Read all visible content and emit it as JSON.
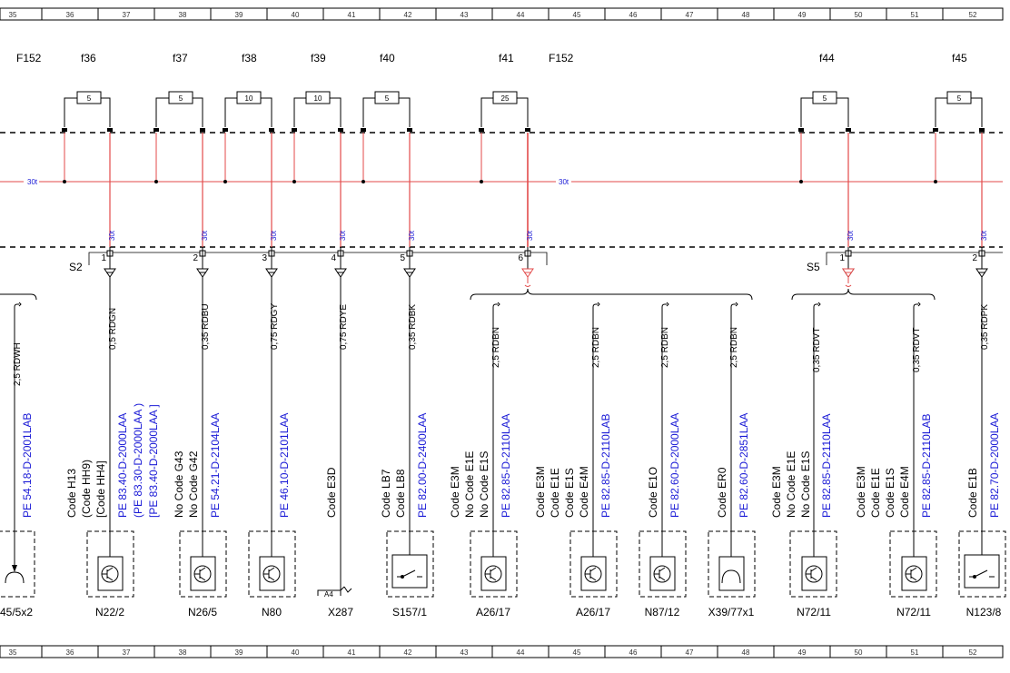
{
  "ruler": [
    "35",
    "36",
    "37",
    "38",
    "39",
    "40",
    "41",
    "42",
    "43",
    "44",
    "45",
    "46",
    "47",
    "48",
    "49",
    "50",
    "51",
    "52"
  ],
  "fuse_blocks": [
    {
      "id": "f152_a",
      "label": "F152"
    },
    {
      "id": "f152_b",
      "label": "F152"
    }
  ],
  "fuses": [
    {
      "name": "f36",
      "rating": "5"
    },
    {
      "name": "f37",
      "rating": "5"
    },
    {
      "name": "f38",
      "rating": "10"
    },
    {
      "name": "f39",
      "rating": "10"
    },
    {
      "name": "f40",
      "rating": "5"
    },
    {
      "name": "f41",
      "rating": "25"
    },
    {
      "name": "f44",
      "rating": "5"
    },
    {
      "name": "f45",
      "rating": "5"
    }
  ],
  "bus": {
    "left": "30t",
    "right": "30t",
    "drop_label": "30t"
  },
  "connectors": [
    {
      "name": "S2",
      "pins": [
        "1",
        "2",
        "3",
        "4",
        "5",
        "6"
      ]
    },
    {
      "name": "S5",
      "pins": [
        "1",
        "2"
      ]
    }
  ],
  "wires": [
    {
      "id": "w0",
      "wire": "2,5 RDWH",
      "codes": [],
      "pe": "PE 54.18-D-2001LAB",
      "component": "45/5x2"
    },
    {
      "id": "w1",
      "wire": "0,5 RDGN",
      "codes": [
        "Code H13",
        "(Code HH9)",
        "[Code HH4]"
      ],
      "pe": "PE 83.40-D-2000LAA",
      "pe2": "(PE 83.30-D-2000LAA    )",
      "pe3": "[PE 83.40-D-2000LAA    ]",
      "component": "N22/2"
    },
    {
      "id": "w2",
      "wire": "0,35 RDBU",
      "codes": [
        "No Code G43",
        "No Code G42"
      ],
      "pe": "PE 54.21-D-2104LAA",
      "component": "N26/5"
    },
    {
      "id": "w3",
      "wire": "0,75 RDGY",
      "codes": [],
      "pe": "PE 46.10-D-2101LAA",
      "component": "N80"
    },
    {
      "id": "w4",
      "wire": "0,75 RDYE",
      "codes": [
        "Code E3D"
      ],
      "pe": "",
      "component": "X287",
      "pin": "A4"
    },
    {
      "id": "w5",
      "wire": "0,35 RDBK",
      "codes": [
        "Code LB7",
        "Code LB8"
      ],
      "pe": "PE 82.00-D-2400LAA",
      "component": "S157/1"
    },
    {
      "id": "w6",
      "wire": "2,5 RDBN",
      "codes": [
        "Code E3M",
        "No Code E1E",
        "No Code E1S"
      ],
      "pe": "PE 82.85-D-2110LAA",
      "component": "A26/17"
    },
    {
      "id": "w7",
      "wire": "2,5 RDBN",
      "codes": [
        "Code E3M",
        "Code E1E",
        "Code E1S",
        "Code E4M"
      ],
      "pe": "PE 82.85-D-2110LAB",
      "component": "A26/17"
    },
    {
      "id": "w8",
      "wire": "2,5 RDBN",
      "codes": [
        "Code E1O"
      ],
      "pe": "PE 82.60-D-2000LAA",
      "component": "N87/12"
    },
    {
      "id": "w9",
      "wire": "2,5 RDBN",
      "codes": [
        "Code ER0"
      ],
      "pe": "PE 82.60-D-2851LAA",
      "component": "X39/77x1"
    },
    {
      "id": "w10",
      "wire": "0,35 RDVT",
      "codes": [
        "Code E3M",
        "No Code E1E",
        "No Code E1S"
      ],
      "pe": "PE 82.85-D-2110LAA",
      "component": "N72/11"
    },
    {
      "id": "w11",
      "wire": "0,35 RDVT",
      "codes": [
        "Code E3M",
        "Code E1E",
        "Code E1S",
        "Code E4M"
      ],
      "pe": "PE 82.85-D-2110LAB",
      "component": "N72/11"
    },
    {
      "id": "w12",
      "wire": "0,35 RDPK",
      "codes": [
        "Code E1B"
      ],
      "pe": "PE 82.70-D-2000LAA",
      "component": "N123/8"
    }
  ],
  "colors": {
    "bus": "#e34a4a",
    "link": "#1a1ad6",
    "line": "#000000"
  }
}
